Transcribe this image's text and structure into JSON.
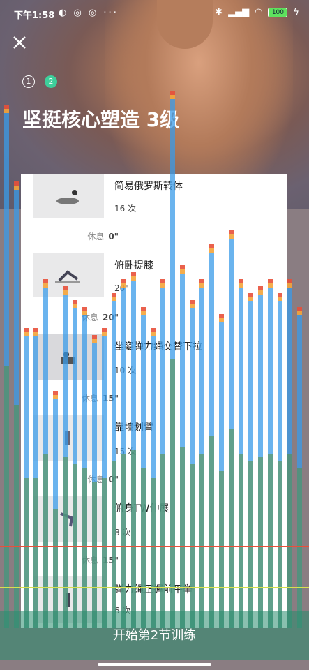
{
  "status_bar": {
    "time": "下午1:58",
    "left_icons": "◐ ◎ ◎ ···",
    "battery": "100"
  },
  "steps": [
    "1",
    "2"
  ],
  "title": "坚挺核心塑造 3级",
  "exercises": [
    {
      "name": "简易俄罗斯转体",
      "count": "16 次",
      "rest_label": "休息",
      "rest_value": "0\""
    },
    {
      "name": "俯卧提膝",
      "count": "20\"",
      "rest_label": "休息",
      "rest_value": "20\""
    },
    {
      "name": "坐姿弹力绳交替下拉",
      "count": "10 次",
      "rest_label": "休息",
      "rest_value": "15\""
    },
    {
      "name": "靠墙划臂",
      "count": "15 次",
      "rest_label": "休息",
      "rest_value": "0\""
    },
    {
      "name": "俯身TW伸展",
      "count": "8 次",
      "rest_label": "休息",
      "rest_value": "15\""
    },
    {
      "name": "弹力绳正握前平举",
      "count": "6 次",
      "rest_label": "",
      "rest_value": ""
    }
  ],
  "start_button": "开始第2节训练",
  "colors": {
    "accent": "#3ecf9b",
    "bar_blue": "#3a9be8",
    "bar_green": "#5a8f3c",
    "bar_orange": "#f4a43a",
    "bar_red": "#e8503a"
  }
}
